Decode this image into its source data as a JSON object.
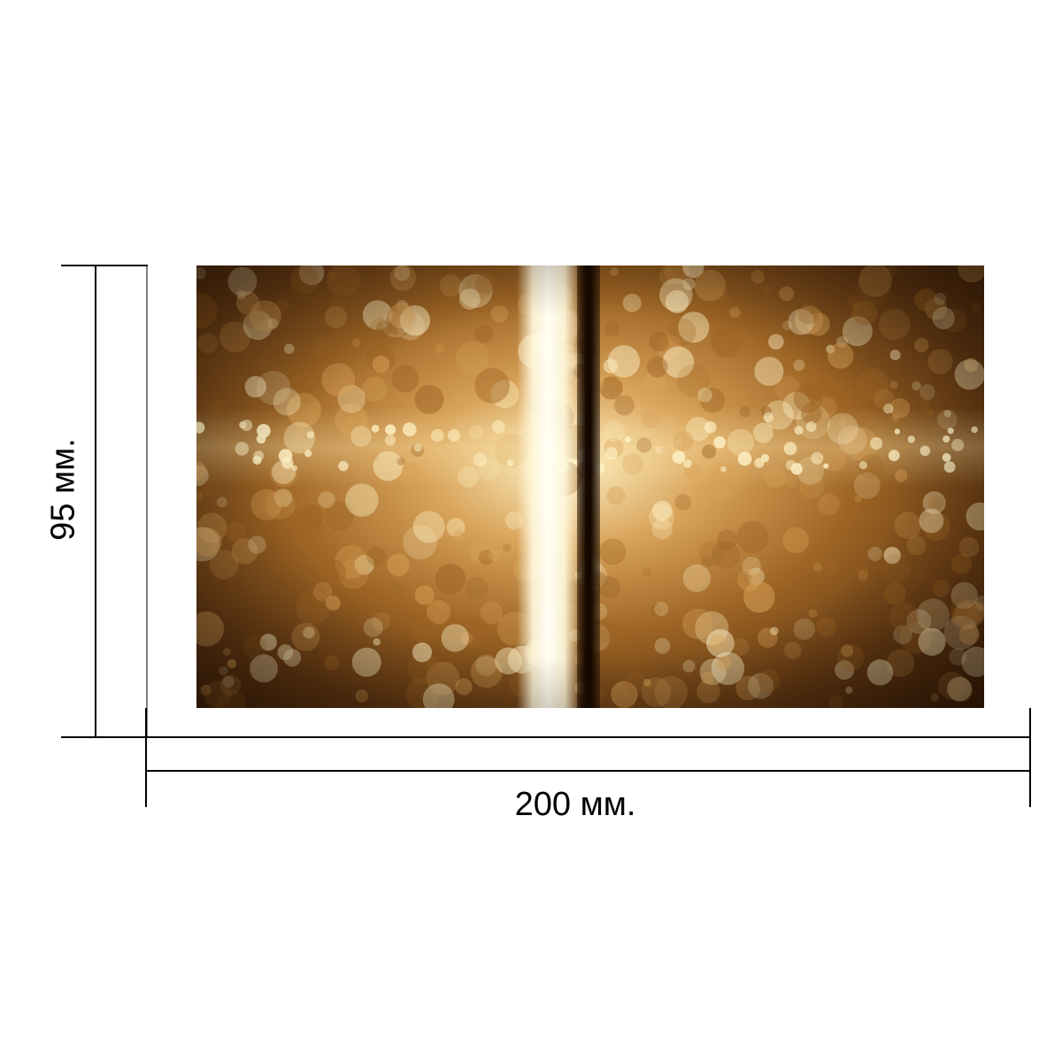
{
  "dimensions": {
    "width_label": "200 мм.",
    "height_label": "95 мм."
  },
  "panel": {
    "tones": {
      "highlight": "#fff2c6",
      "amber": "#d8a35a",
      "bronze": "#9c6424",
      "dark": "#2e1706"
    }
  }
}
